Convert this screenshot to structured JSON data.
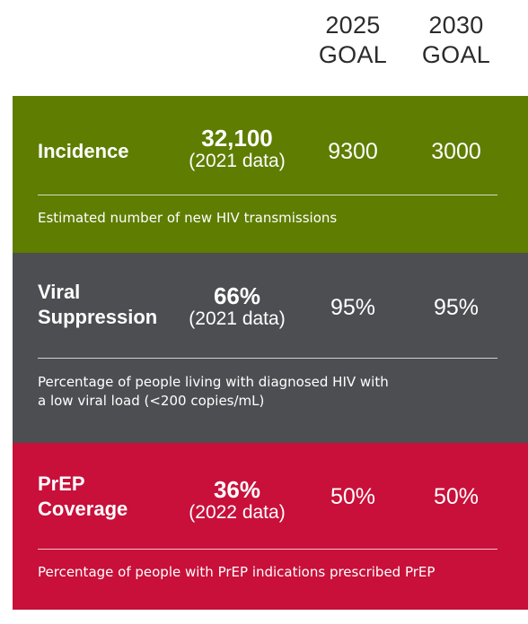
{
  "header": {
    "goals": [
      {
        "year": "2025",
        "label": "GOAL"
      },
      {
        "year": "2030",
        "label": "GOAL"
      }
    ]
  },
  "colors": {
    "incidence": "#5f7d00",
    "viral_suppression": "#4d4e52",
    "prep_coverage": "#c8103a",
    "header_text": "#2b2b2b"
  },
  "rows": [
    {
      "name_lines": [
        "Incidence",
        ""
      ],
      "current_value": "32,100",
      "current_note": "(2021 data)",
      "goal_2025": "9300",
      "goal_2030": "3000",
      "description_lines": [
        "Estimated number of new HIV transmissions",
        ""
      ]
    },
    {
      "name_lines": [
        "Viral",
        "Suppression"
      ],
      "current_value": "66%",
      "current_note": "(2021 data)",
      "goal_2025": "95%",
      "goal_2030": "95%",
      "description_lines": [
        "Percentage of people living with diagnosed HIV with",
        "a low viral load (<200 copies/mL)"
      ]
    },
    {
      "name_lines": [
        "PrEP",
        "Coverage"
      ],
      "current_value": "36%",
      "current_note": "(2022 data)",
      "goal_2025": "50%",
      "goal_2030": "50%",
      "description_lines": [
        "Percentage of people with PrEP indications prescribed PrEP",
        ""
      ]
    }
  ],
  "chart_data": {
    "type": "table",
    "columns": [
      "",
      "",
      "2025 GOAL",
      "2030 GOAL"
    ],
    "rows": [
      [
        "Incidence",
        "32,100 (2021 data)",
        "9300",
        "3000"
      ],
      [
        "Viral Suppression",
        "66% (2021 data)",
        "95%",
        "95%"
      ],
      [
        "PrEP Coverage",
        "36% (2022 data)",
        "50%",
        "50%"
      ]
    ]
  }
}
